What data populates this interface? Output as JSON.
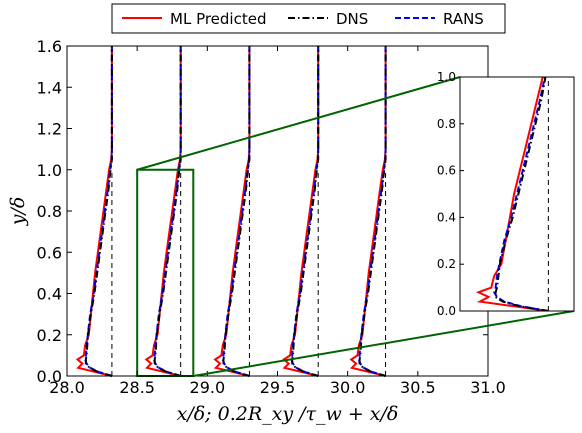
{
  "chart_data": {
    "type": "line",
    "xlabel": "x/δ;    0.2R_xy /τ_w + x/δ",
    "ylabel": "y/δ",
    "xlim": [
      28.0,
      31.0
    ],
    "ylim": [
      0.0,
      1.6
    ],
    "x_ticks": [
      "28.0",
      "28.5",
      "29.0",
      "29.5",
      "30.0",
      "30.5",
      "31.0"
    ],
    "y_ticks": [
      "0.0",
      "0.2",
      "0.4",
      "0.6",
      "0.8",
      "1.0",
      "1.2",
      "1.4",
      "1.6"
    ],
    "legend": {
      "placement": "top",
      "entries": [
        {
          "name": "ML Predicted",
          "color": "#ff0000",
          "style": "solid"
        },
        {
          "name": "DNS",
          "color": "#000000",
          "style": "dashdot"
        },
        {
          "name": "RANS",
          "color": "#0000ff",
          "style": "dashed"
        }
      ]
    },
    "stations": [
      28.32,
      28.81,
      29.3,
      29.79,
      30.27
    ],
    "profile_y": [
      0.0,
      0.02,
      0.04,
      0.06,
      0.08,
      0.1,
      0.15,
      0.2,
      0.3,
      0.4,
      0.5,
      0.6,
      0.7,
      0.8,
      0.9,
      1.0,
      1.05,
      1.1,
      1.3,
      1.6
    ],
    "profile_offsets": {
      "ML Predicted": [
        0.0,
        -0.12,
        -0.24,
        -0.21,
        -0.245,
        -0.2,
        -0.19,
        -0.165,
        -0.15,
        -0.135,
        -0.12,
        -0.1,
        -0.08,
        -0.06,
        -0.04,
        -0.02,
        -0.005,
        0.0,
        0.0,
        0.0
      ],
      "DNS": [
        0.0,
        -0.1,
        -0.16,
        -0.185,
        -0.185,
        -0.18,
        -0.175,
        -0.17,
        -0.15,
        -0.125,
        -0.105,
        -0.085,
        -0.065,
        -0.045,
        -0.025,
        -0.01,
        0.0,
        0.0,
        0.0,
        0.0
      ],
      "RANS": [
        0.0,
        -0.095,
        -0.155,
        -0.18,
        -0.19,
        -0.185,
        -0.18,
        -0.172,
        -0.155,
        -0.13,
        -0.11,
        -0.09,
        -0.07,
        -0.05,
        -0.03,
        -0.012,
        -0.002,
        0.0,
        0.0,
        0.0
      ]
    },
    "zoom_box": {
      "x": [
        28.5,
        28.9
      ],
      "y": [
        0.0,
        1.0
      ]
    },
    "inset": {
      "xlim": [
        28.5,
        28.9
      ],
      "ylim": [
        0.0,
        1.0
      ],
      "y_ticks": [
        "0.0",
        "0.2",
        "0.4",
        "0.6",
        "0.8",
        "1.0"
      ],
      "station": 28.81
    },
    "grid": false,
    "colors": {
      "zoom": "#006400",
      "axes": "#000000"
    }
  }
}
